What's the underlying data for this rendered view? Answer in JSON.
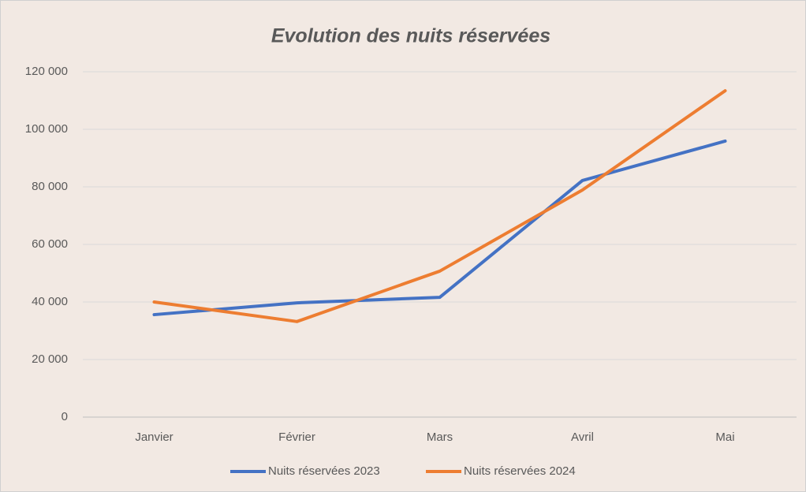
{
  "chart_data": {
    "type": "line",
    "title": "Evolution des nuits réservées",
    "categories": [
      "Janvier",
      "Février",
      "Mars",
      "Avril",
      "Mai"
    ],
    "series": [
      {
        "name": "Nuits réservées 2023",
        "color": "#4472c4",
        "values": [
          35600,
          39700,
          41600,
          82200,
          95900
        ]
      },
      {
        "name": "Nuits réservées 2024",
        "color": "#ed7d31",
        "values": [
          40000,
          33200,
          50700,
          78900,
          113400
        ]
      }
    ],
    "ylim": [
      0,
      120000
    ],
    "yticks": [
      0,
      {
        "value": 20000,
        "label": "20 000"
      },
      {
        "value": 40000,
        "label": "40 000"
      },
      {
        "value": 60000,
        "label": "60 000"
      },
      {
        "value": 80000,
        "label": "80 000"
      },
      {
        "value": 100000,
        "label": "100 000"
      },
      {
        "value": 120000,
        "label": "120 000"
      }
    ],
    "grid": true,
    "legend": "bottom"
  }
}
